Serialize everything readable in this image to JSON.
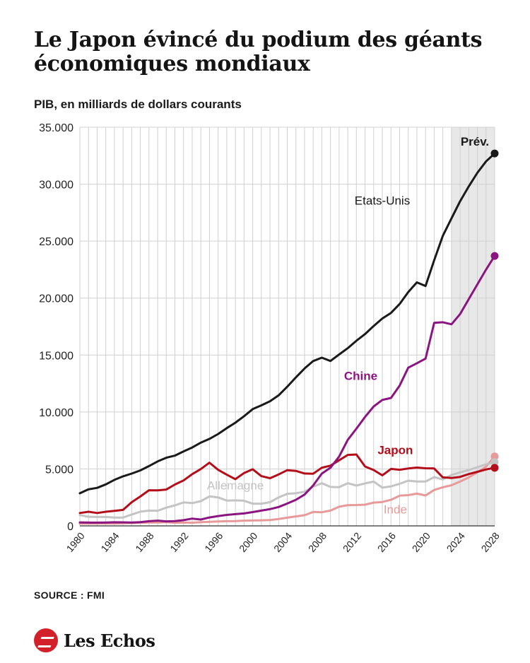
{
  "header": {
    "title": "Le Japon évincé du podium des géants économiques mondiaux",
    "subtitle": "PIB, en milliards de dollars courants"
  },
  "footer": {
    "source": "SOURCE : FMI",
    "brand": "Les Echos"
  },
  "colors": {
    "Etats-Unis": "#1a1a1a",
    "Chine": "#8b1580",
    "Japon": "#b30e1a",
    "Allemagne": "#c4c4c4",
    "Inde": "#e89a9a",
    "forecast_band": "#e8e8e8",
    "grid": "#d0d0d0",
    "brand": "#d3212a"
  },
  "chart_data": {
    "type": "line",
    "x": [
      1980,
      1981,
      1982,
      1983,
      1984,
      1985,
      1986,
      1987,
      1988,
      1989,
      1990,
      1991,
      1992,
      1993,
      1994,
      1995,
      1996,
      1997,
      1998,
      1999,
      2000,
      2001,
      2002,
      2003,
      2004,
      2005,
      2006,
      2007,
      2008,
      2009,
      2010,
      2011,
      2012,
      2013,
      2014,
      2015,
      2016,
      2017,
      2018,
      2019,
      2020,
      2021,
      2022,
      2023,
      2024,
      2025,
      2026,
      2027,
      2028
    ],
    "ylim": [
      0,
      35000
    ],
    "yticks": [
      0,
      5000,
      10000,
      15000,
      20000,
      25000,
      30000,
      35000
    ],
    "ytick_labels": [
      "0",
      "5.000",
      "10.000",
      "15.000",
      "20.000",
      "25.000",
      "30.000",
      "35.000"
    ],
    "xticks": [
      1980,
      1984,
      1988,
      1992,
      1996,
      2000,
      2004,
      2008,
      2012,
      2016,
      2020,
      2024,
      2028
    ],
    "xtick_labels": [
      "1980",
      "1984",
      "1988",
      "1992",
      "1996",
      "2000",
      "2004",
      "2008",
      "2012",
      "2016",
      "2020",
      "2024",
      "2028"
    ],
    "forecast_start": 2023,
    "forecast_label": "Prév.",
    "grid": true,
    "series": [
      {
        "name": "Etats-Unis",
        "label_x": 2015,
        "label_y": 28200,
        "values": [
          2860,
          3210,
          3340,
          3640,
          4040,
          4350,
          4590,
          4870,
          5250,
          5660,
          5980,
          6170,
          6540,
          6880,
          7310,
          7640,
          8070,
          8580,
          9060,
          9630,
          10250,
          10580,
          10940,
          11460,
          12220,
          13040,
          13820,
          14470,
          14770,
          14480,
          15050,
          15600,
          16250,
          16840,
          17550,
          18210,
          18700,
          19480,
          20530,
          21380,
          21060,
          23320,
          25460,
          27000,
          28500,
          29800,
          31000,
          32000,
          32700
        ]
      },
      {
        "name": "Chine",
        "label_x": 2012.5,
        "label_y": 12800,
        "values": [
          305,
          290,
          285,
          300,
          315,
          310,
          300,
          325,
          410,
          460,
          400,
          415,
          500,
          640,
          560,
          740,
          860,
          960,
          1030,
          1090,
          1210,
          1340,
          1470,
          1660,
          1960,
          2290,
          2750,
          3550,
          4590,
          5100,
          6090,
          7550,
          8530,
          9570,
          10480,
          11060,
          11230,
          12310,
          13890,
          14280,
          14690,
          17820,
          17880,
          17700,
          18600,
          19900,
          21200,
          22500,
          23700
        ]
      },
      {
        "name": "Japon",
        "label_x": 2016.5,
        "label_y": 6300,
        "values": [
          1130,
          1240,
          1130,
          1240,
          1320,
          1400,
          2080,
          2580,
          3130,
          3120,
          3190,
          3630,
          3990,
          4540,
          4990,
          5550,
          4920,
          4490,
          4100,
          4640,
          4970,
          4370,
          4180,
          4520,
          4890,
          4830,
          4600,
          4580,
          5110,
          5290,
          5760,
          6230,
          6270,
          5210,
          4900,
          4440,
          5000,
          4930,
          5040,
          5120,
          5060,
          5040,
          4260,
          4210,
          4300,
          4550,
          4750,
          4950,
          5100
        ]
      },
      {
        "name": "Allemagne",
        "label_x": 1998,
        "label_y": 3200,
        "values": [
          950,
          800,
          780,
          780,
          730,
          730,
          1000,
          1250,
          1340,
          1330,
          1600,
          1800,
          2060,
          2000,
          2170,
          2590,
          2500,
          2220,
          2240,
          2210,
          1950,
          1950,
          2080,
          2500,
          2820,
          2860,
          3000,
          3440,
          3750,
          3420,
          3400,
          3750,
          3540,
          3730,
          3890,
          3360,
          3470,
          3690,
          3970,
          3890,
          3890,
          4280,
          4080,
          4460,
          4700,
          4900,
          5150,
          5400,
          5600
        ]
      },
      {
        "name": "Inde",
        "label_x": 2016.5,
        "label_y": 1100,
        "values": [
          190,
          200,
          205,
          215,
          210,
          230,
          250,
          280,
          300,
          300,
          320,
          270,
          290,
          280,
          330,
          360,
          390,
          410,
          420,
          460,
          470,
          490,
          510,
          610,
          720,
          830,
          940,
          1220,
          1200,
          1340,
          1680,
          1820,
          1830,
          1860,
          2040,
          2100,
          2290,
          2650,
          2700,
          2830,
          2670,
          3150,
          3390,
          3570,
          3890,
          4250,
          4700,
          5200,
          6100
        ]
      }
    ]
  }
}
